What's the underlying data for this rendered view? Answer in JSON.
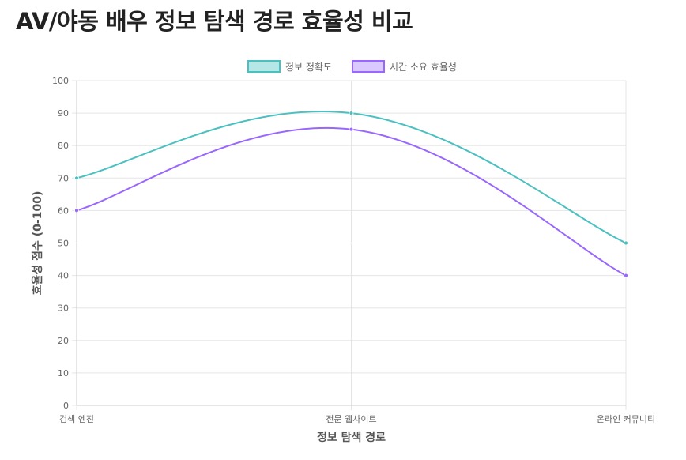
{
  "page": {
    "title": "AV/야동 배우 정보 탐색 경로 효율성 비교"
  },
  "chart_data": {
    "type": "line",
    "title": "",
    "xlabel": "정보 탐색 경로",
    "ylabel": "효율성 점수 (0-100)",
    "categories": [
      "검색 엔진",
      "전문 웹사이트",
      "온라인 커뮤니티"
    ],
    "ylim": [
      0,
      100
    ],
    "yticks": [
      0,
      10,
      20,
      30,
      40,
      50,
      60,
      70,
      80,
      90,
      100
    ],
    "grid": true,
    "legend_position": "top-center",
    "curve": "smooth",
    "series": [
      {
        "name": "정보 정확도",
        "values": [
          70,
          90,
          50
        ],
        "color": "#4bc0c0",
        "fill": "#b5e7e7"
      },
      {
        "name": "시간 소요 효율성",
        "values": [
          60,
          85,
          40
        ],
        "color": "#9966ff",
        "fill": "#d9c9ff"
      }
    ]
  }
}
